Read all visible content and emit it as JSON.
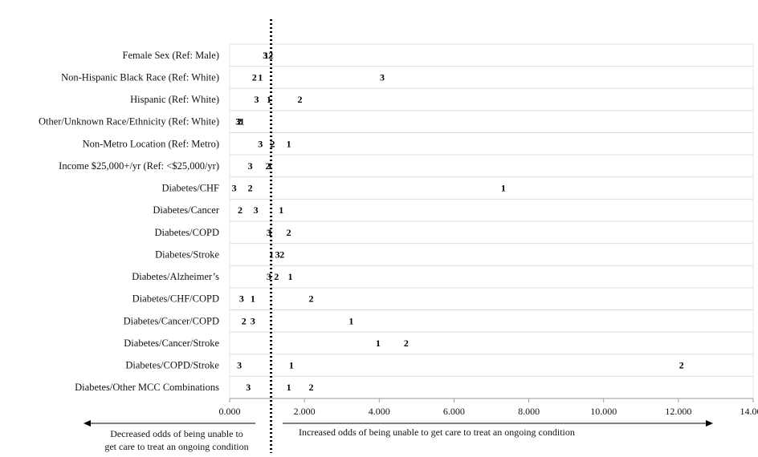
{
  "chart_data": {
    "type": "scatter",
    "categories": [
      "Female Sex (Ref: Male)",
      "Non-Hispanic Black Race (Ref: White)",
      "Hispanic (Ref: White)",
      "Other/Unknown Race/Ethnicity (Ref: White)",
      "Non-Metro Location (Ref: Metro)",
      "Income $25,000+/yr (Ref: <$25,000/yr)",
      "Diabetes/CHF",
      "Diabetes/Cancer",
      "Diabetes/COPD",
      "Diabetes/Stroke",
      "Diabetes/Alzheimer’s",
      "Diabetes/CHF/COPD",
      "Diabetes/Cancer/COPD",
      "Diabetes/Cancer/Stroke",
      "Diabetes/COPD/Stroke",
      "Diabetes/Other MCC Combinations"
    ],
    "series": [
      {
        "name": "1",
        "values": [
          0.98,
          0.82,
          1.05,
          0.33,
          1.58,
          1.08,
          7.32,
          1.38,
          1.08,
          1.12,
          1.62,
          0.62,
          3.25,
          3.97,
          1.65,
          1.58
        ]
      },
      {
        "name": "2",
        "values": [
          1.1,
          0.66,
          1.88,
          0.26,
          1.15,
          1.02,
          0.55,
          0.28,
          1.58,
          1.4,
          1.25,
          2.18,
          0.38,
          4.72,
          12.08,
          2.18
        ]
      },
      {
        "name": "3",
        "values": [
          0.95,
          4.08,
          0.72,
          0.22,
          0.82,
          0.55,
          0.12,
          0.7,
          1.05,
          1.28,
          1.05,
          0.32,
          0.62,
          null,
          0.26,
          0.5
        ]
      }
    ],
    "xlim": [
      0,
      14
    ],
    "x_ticks": [
      "0.000",
      "2.000",
      "4.000",
      "6.000",
      "8.000",
      "10.000",
      "12.000",
      "14.000"
    ],
    "reference_line": 1,
    "grid": "horizontal",
    "annotations": {
      "left": [
        "Decreased odds of being unable to",
        "get care to treat an ongoing condition"
      ],
      "right": "Increased odds of being unable to get care to treat an ongoing  condition"
    }
  }
}
